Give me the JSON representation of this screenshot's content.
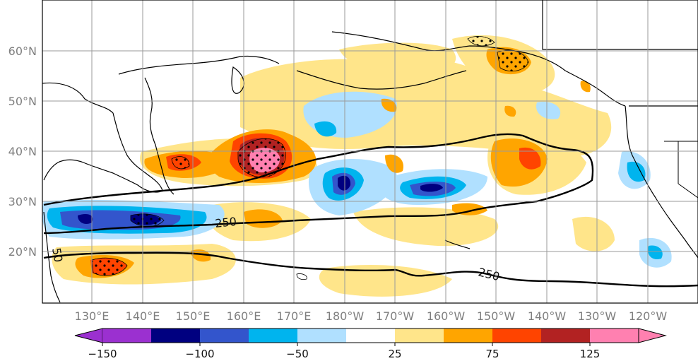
{
  "map": {
    "lat_labels": [
      "60°N",
      "50°N",
      "40°N",
      "30°N",
      "20°N"
    ],
    "lon_labels": [
      "130°E",
      "140°E",
      "150°E",
      "160°E",
      "170°E",
      "180°W",
      "170°W",
      "160°W",
      "150°W",
      "140°W",
      "130°W",
      "120°W"
    ],
    "contour_labels": [
      "250",
      "250",
      "50"
    ],
    "colors": {
      "land_outline": "#000000",
      "gridline": "#9a9a9a",
      "contour": "#000000",
      "stipple": "#000000"
    }
  },
  "colorbar": {
    "tick_labels": [
      "−150",
      "−100",
      "−50",
      "25",
      "75",
      "125"
    ],
    "colors": [
      "#9b30d0",
      "#000080",
      "#3355cc",
      "#00b4ee",
      "#b0e0ff",
      "#ffffff",
      "#ffe58a",
      "#ffa500",
      "#ff4400",
      "#b22222",
      "#ff80b0"
    ]
  }
}
